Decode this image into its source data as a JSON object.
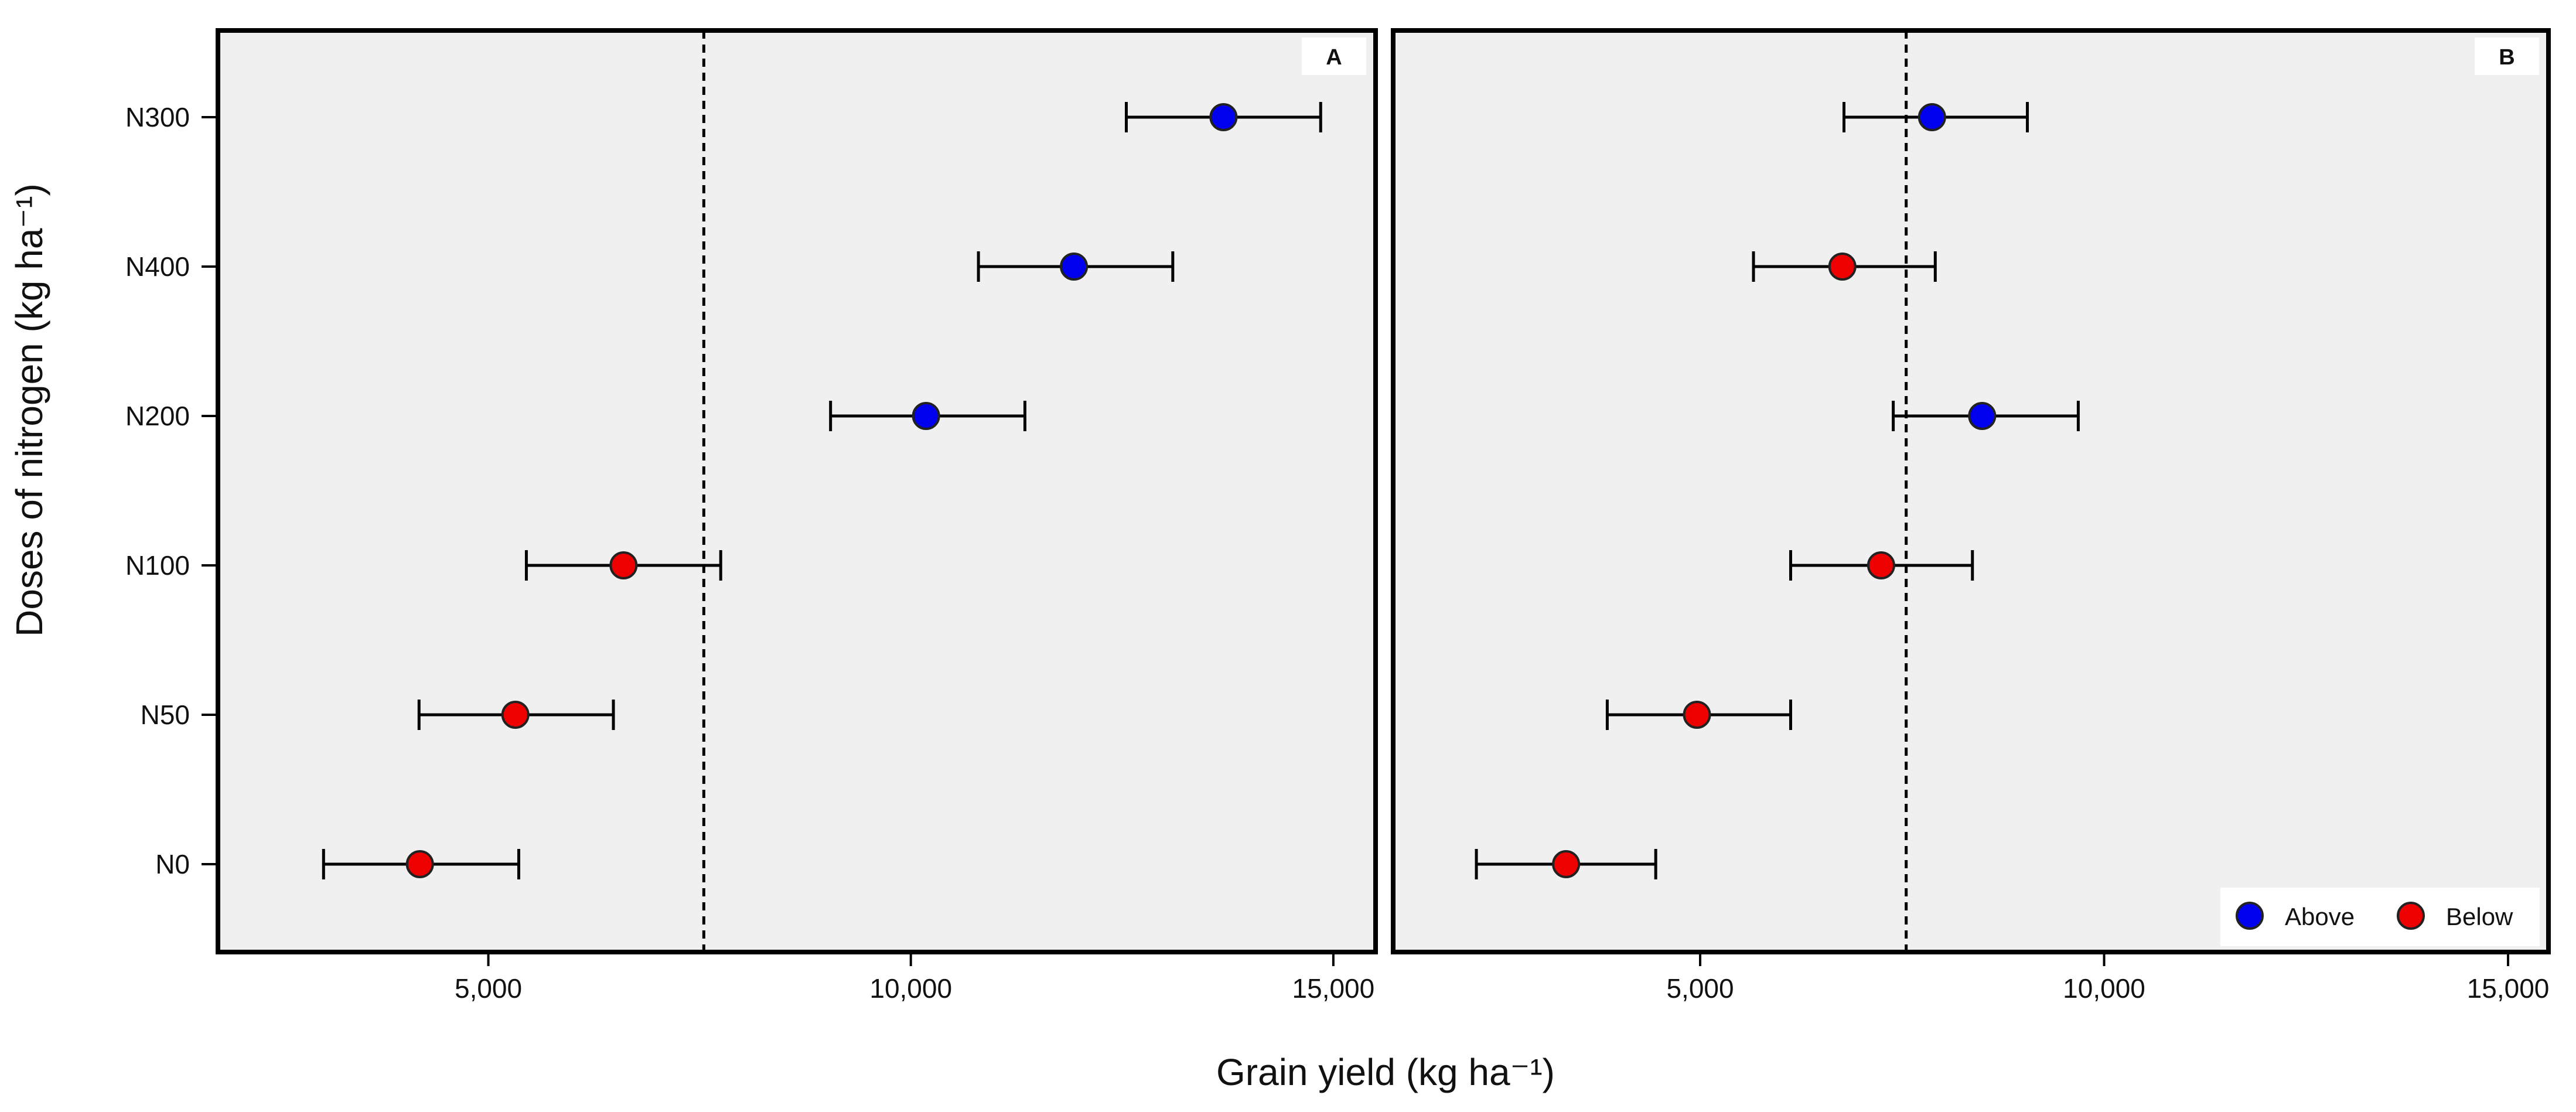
{
  "ylabel": "Doses of nitrogen (kg ha⁻¹)",
  "xlabel": "Grain yield (kg ha⁻¹)",
  "colors": {
    "Above": "#0000ee",
    "Below": "#ee0000"
  },
  "chart_data": [
    {
      "type": "scatter",
      "panel": "A",
      "categories": [
        "N300",
        "N400",
        "N200",
        "N100",
        "N50",
        "N0"
      ],
      "xlim": [
        1800,
        15500
      ],
      "xticks": [
        5000,
        10000,
        15000
      ],
      "xtick_labels": [
        "5,000",
        "10,000",
        "15,000"
      ],
      "reference_line": 7550,
      "grid": false,
      "points": [
        {
          "category": "N300",
          "x": 13700,
          "lo": 12550,
          "hi": 14850,
          "group": "Above"
        },
        {
          "category": "N400",
          "x": 11930,
          "lo": 10800,
          "hi": 13100,
          "group": "Above"
        },
        {
          "category": "N200",
          "x": 10180,
          "lo": 9050,
          "hi": 11350,
          "group": "Above"
        },
        {
          "category": "N100",
          "x": 6600,
          "lo": 5450,
          "hi": 7750,
          "group": "Below"
        },
        {
          "category": "N50",
          "x": 5320,
          "lo": 4180,
          "hi": 6480,
          "group": "Below"
        },
        {
          "category": "N0",
          "x": 4190,
          "lo": 3050,
          "hi": 5360,
          "group": "Below"
        }
      ]
    },
    {
      "type": "scatter",
      "panel": "B",
      "categories": [
        "N300",
        "N400",
        "N200",
        "N100",
        "N50",
        "N0"
      ],
      "xlim": [
        1200,
        15500
      ],
      "xticks": [
        5000,
        10000,
        15000
      ],
      "xtick_labels": [
        "5,000",
        "10,000",
        "15,000"
      ],
      "reference_line": 7550,
      "grid": false,
      "legend": {
        "position": "bottom-right",
        "entries": [
          "Above",
          "Below"
        ]
      },
      "points": [
        {
          "category": "N300",
          "x": 7870,
          "lo": 6780,
          "hi": 9050,
          "group": "Above"
        },
        {
          "category": "N400",
          "x": 6760,
          "lo": 5660,
          "hi": 7910,
          "group": "Below"
        },
        {
          "category": "N200",
          "x": 8490,
          "lo": 7390,
          "hi": 9680,
          "group": "Above"
        },
        {
          "category": "N100",
          "x": 7240,
          "lo": 6120,
          "hi": 8370,
          "group": "Below"
        },
        {
          "category": "N50",
          "x": 4960,
          "lo": 3850,
          "hi": 6120,
          "group": "Below"
        },
        {
          "category": "N0",
          "x": 3340,
          "lo": 2230,
          "hi": 4450,
          "group": "Below"
        }
      ]
    }
  ]
}
